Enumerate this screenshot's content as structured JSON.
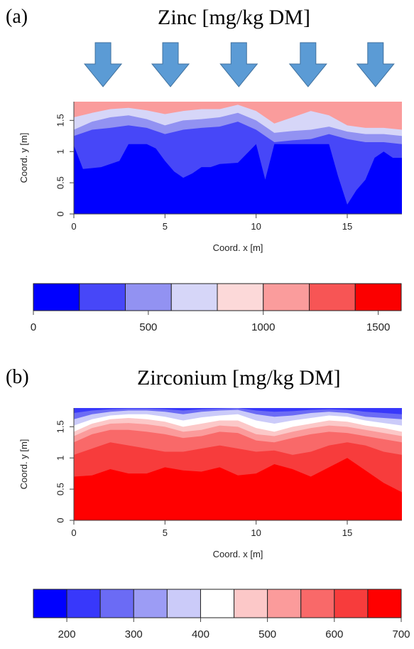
{
  "panels": [
    {
      "letter": "(a)",
      "title": "Zinc [mg/kg DM]",
      "arrow_count": 5,
      "chart_data": {
        "type": "heatmap",
        "title": "Zinc [mg/kg DM]",
        "xlabel": "Coord. x [m]",
        "ylabel": "Coord. y [m]",
        "xlim": [
          0,
          18
        ],
        "ylim": [
          0,
          1.8
        ],
        "xticks": [
          0,
          5,
          10,
          15
        ],
        "yticks": [
          0,
          0.5,
          1,
          1.5
        ],
        "colorbar": {
          "ticks": [
            0,
            500,
            1000,
            1500
          ],
          "breaks": [
            0,
            200,
            400,
            600,
            800,
            1000,
            1200,
            1400,
            1600
          ],
          "colors": [
            "#0000ff",
            "#4747f8",
            "#9292f2",
            "#d6d6f8",
            "#fcd9d9",
            "#fa9c9c",
            "#f75555",
            "#fb0000"
          ]
        },
        "contours": [
          {
            "level": 200,
            "x": [
              0,
              0.5,
              1.5,
              2.5,
              3,
              4,
              4.5,
              5,
              5.5,
              6,
              6.5,
              7,
              7.5,
              8,
              9,
              10,
              10.5,
              11,
              11.5,
              12,
              13,
              14,
              14.5,
              15,
              15.5,
              16,
              16.5,
              17,
              17.5,
              18
            ],
            "y": [
              1.1,
              0.72,
              0.75,
              0.85,
              1.12,
              1.12,
              1.05,
              0.85,
              0.68,
              0.58,
              0.65,
              0.75,
              0.75,
              0.8,
              0.82,
              1.12,
              0.55,
              1.12,
              1.12,
              1.12,
              1.12,
              1.12,
              0.6,
              0.15,
              0.38,
              0.55,
              0.9,
              1.0,
              0.9,
              0.9
            ]
          },
          {
            "level": 400,
            "x": [
              0,
              1,
              2,
              3,
              4,
              5,
              6,
              7,
              8,
              9,
              10,
              11,
              12,
              13,
              14,
              15,
              16,
              17,
              18
            ],
            "y": [
              1.25,
              1.35,
              1.38,
              1.42,
              1.38,
              1.28,
              1.35,
              1.38,
              1.4,
              1.48,
              1.35,
              1.15,
              1.18,
              1.2,
              1.28,
              1.2,
              1.15,
              1.15,
              1.12
            ]
          },
          {
            "level": 600,
            "x": [
              0,
              1,
              2,
              3,
              4,
              5,
              6,
              7,
              8,
              9,
              10,
              11,
              12,
              13,
              14,
              15,
              16,
              17,
              18
            ],
            "y": [
              1.35,
              1.48,
              1.55,
              1.58,
              1.52,
              1.42,
              1.5,
              1.52,
              1.55,
              1.62,
              1.5,
              1.3,
              1.33,
              1.35,
              1.4,
              1.32,
              1.28,
              1.28,
              1.25
            ]
          },
          {
            "level": 800,
            "x": [
              0,
              1,
              2,
              3,
              4,
              5,
              6,
              7,
              8,
              9,
              10,
              11,
              12,
              13,
              14,
              15,
              16,
              17,
              18
            ],
            "y": [
              1.55,
              1.62,
              1.68,
              1.7,
              1.66,
              1.6,
              1.65,
              1.68,
              1.68,
              1.75,
              1.65,
              1.45,
              1.55,
              1.65,
              1.58,
              1.42,
              1.38,
              1.38,
              1.35
            ]
          }
        ]
      }
    },
    {
      "letter": "(b)",
      "title": "Zirconium [mg/kg DM]",
      "chart_data": {
        "type": "heatmap",
        "title": "Zirconium [mg/kg DM]",
        "xlabel": "Coord. x [m]",
        "ylabel": "Coord. y [m]",
        "xlim": [
          0,
          18
        ],
        "ylim": [
          0,
          1.8
        ],
        "xticks": [
          0,
          5,
          10,
          15
        ],
        "yticks": [
          0,
          0.5,
          1,
          1.5
        ],
        "colorbar": {
          "ticks": [
            200,
            300,
            400,
            500,
            600,
            700
          ],
          "breaks": [
            150,
            200,
            250,
            300,
            350,
            400,
            450,
            500,
            550,
            600,
            650,
            700
          ],
          "colors": [
            "#0000ff",
            "#3838fb",
            "#6b6bf5",
            "#9c9cf5",
            "#cbcbf9",
            "#ffffff",
            "#fcc8c8",
            "#fb9b9b",
            "#f96969",
            "#f73c3c",
            "#ff0000"
          ]
        },
        "contours": [
          {
            "level": 600,
            "x": [
              0,
              1,
              2,
              3,
              4,
              5,
              6,
              7,
              8,
              9,
              10,
              11,
              12,
              13,
              14,
              15,
              16,
              17,
              18
            ],
            "y": [
              0.7,
              0.72,
              0.82,
              0.75,
              0.75,
              0.85,
              0.8,
              0.78,
              0.85,
              0.72,
              0.75,
              0.9,
              0.82,
              0.7,
              0.85,
              1.0,
              0.8,
              0.6,
              0.45
            ]
          },
          {
            "level": 550,
            "x": [
              0,
              1,
              2,
              3,
              4,
              5,
              6,
              7,
              8,
              9,
              10,
              11,
              12,
              13,
              14,
              15,
              16,
              17,
              18
            ],
            "y": [
              1.05,
              1.15,
              1.25,
              1.2,
              1.15,
              1.1,
              1.1,
              1.15,
              1.2,
              1.15,
              1.1,
              1.12,
              1.05,
              1.1,
              1.2,
              1.25,
              1.2,
              1.1,
              1.05
            ]
          },
          {
            "level": 500,
            "x": [
              0,
              1,
              2,
              3,
              4,
              5,
              6,
              7,
              8,
              9,
              10,
              11,
              12,
              13,
              14,
              15,
              16,
              17,
              18
            ],
            "y": [
              1.25,
              1.38,
              1.45,
              1.45,
              1.42,
              1.38,
              1.32,
              1.35,
              1.42,
              1.4,
              1.28,
              1.25,
              1.32,
              1.38,
              1.42,
              1.4,
              1.35,
              1.3,
              1.25
            ]
          },
          {
            "level": 450,
            "x": [
              0,
              1,
              2,
              3,
              4,
              5,
              6,
              7,
              8,
              9,
              10,
              11,
              12,
              13,
              14,
              15,
              16,
              17,
              18
            ],
            "y": [
              1.35,
              1.48,
              1.55,
              1.56,
              1.54,
              1.5,
              1.42,
              1.45,
              1.52,
              1.5,
              1.38,
              1.35,
              1.42,
              1.48,
              1.52,
              1.5,
              1.45,
              1.4,
              1.35
            ]
          },
          {
            "level": 400,
            "x": [
              0,
              1,
              2,
              3,
              4,
              5,
              6,
              7,
              8,
              9,
              10,
              11,
              12,
              13,
              14,
              15,
              16,
              17,
              18
            ],
            "y": [
              1.42,
              1.55,
              1.62,
              1.64,
              1.62,
              1.58,
              1.5,
              1.55,
              1.6,
              1.6,
              1.48,
              1.42,
              1.5,
              1.55,
              1.6,
              1.58,
              1.52,
              1.48,
              1.42
            ]
          },
          {
            "level": 350,
            "x": [
              0,
              1,
              2,
              3,
              4,
              5,
              6,
              7,
              8,
              9,
              10,
              11,
              12,
              13,
              14,
              15,
              16,
              17,
              18
            ],
            "y": [
              1.52,
              1.62,
              1.68,
              1.7,
              1.7,
              1.66,
              1.6,
              1.65,
              1.68,
              1.7,
              1.6,
              1.55,
              1.6,
              1.64,
              1.68,
              1.66,
              1.6,
              1.56,
              1.52
            ]
          },
          {
            "level": 300,
            "x": [
              0,
              1,
              2,
              3,
              4,
              5,
              6,
              7,
              8,
              9,
              10,
              11,
              12,
              13,
              14,
              15,
              16,
              17,
              18
            ],
            "y": [
              1.62,
              1.7,
              1.74,
              1.76,
              1.76,
              1.74,
              1.7,
              1.74,
              1.76,
              1.77,
              1.7,
              1.66,
              1.68,
              1.72,
              1.74,
              1.72,
              1.66,
              1.64,
              1.62
            ]
          },
          {
            "level": 250,
            "x": [
              0,
              1,
              2,
              3,
              4,
              5,
              6,
              7,
              8,
              9,
              10,
              11,
              12,
              13,
              14,
              15,
              16,
              17,
              18
            ],
            "y": [
              1.72,
              1.76,
              1.78,
              1.79,
              1.79,
              1.78,
              1.76,
              1.78,
              1.79,
              1.8,
              1.76,
              1.74,
              1.75,
              1.77,
              1.78,
              1.77,
              1.74,
              1.72,
              1.7
            ]
          }
        ]
      }
    }
  ]
}
